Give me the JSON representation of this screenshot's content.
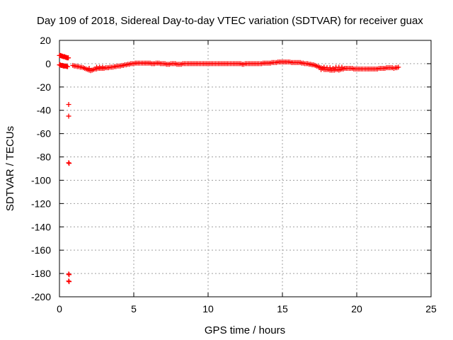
{
  "chart_data": {
    "type": "scatter",
    "title": "Day 109 of 2018, Sidereal Day-to-day VTEC variation (SDTVAR) for receiver guax",
    "xlabel": "GPS time / hours",
    "ylabel": "SDTVAR / TECUs",
    "xlim": [
      0,
      25
    ],
    "ylim": [
      -200,
      20
    ],
    "xticks": [
      0,
      5,
      10,
      15,
      20,
      25
    ],
    "yticks": [
      20,
      0,
      -20,
      -40,
      -60,
      -80,
      -100,
      -120,
      -140,
      -160,
      -180,
      -200
    ],
    "grid": true,
    "legend": "none",
    "marker": "plus",
    "series_color": "#ff0000",
    "series": [
      {
        "points": [
          [
            0.0,
            7
          ],
          [
            0.05,
            7
          ],
          [
            0.1,
            7
          ],
          [
            0.15,
            6.5
          ],
          [
            0.2,
            6.5
          ],
          [
            0.25,
            6
          ],
          [
            0.3,
            6
          ],
          [
            0.35,
            6
          ],
          [
            0.4,
            5.5
          ],
          [
            0.45,
            5.5
          ],
          [
            0.5,
            5
          ],
          [
            0.55,
            5
          ],
          [
            0.6,
            5
          ],
          [
            0.0,
            -1
          ],
          [
            0.05,
            -1
          ],
          [
            0.1,
            -1.5
          ],
          [
            0.15,
            -1.5
          ],
          [
            0.2,
            -1.5
          ],
          [
            0.25,
            -2
          ],
          [
            0.3,
            -2
          ],
          [
            0.35,
            -2
          ],
          [
            0.4,
            -2
          ],
          [
            0.45,
            -2
          ],
          [
            0.5,
            -2.5
          ],
          [
            0.55,
            -2.5
          ],
          [
            0.62,
            -35
          ],
          [
            0.62,
            -45
          ],
          [
            0.62,
            -85
          ],
          [
            0.65,
            -85.5
          ],
          [
            0.62,
            -180.5
          ],
          [
            0.65,
            -181
          ],
          [
            0.62,
            -186.5
          ],
          [
            0.65,
            -187
          ],
          [
            0.9,
            -1.5
          ],
          [
            1.0,
            -2
          ],
          [
            1.1,
            -2
          ],
          [
            1.2,
            -2.5
          ],
          [
            1.3,
            -2.5
          ],
          [
            1.4,
            -3
          ],
          [
            1.5,
            -3
          ],
          [
            1.6,
            -3.5
          ],
          [
            1.7,
            -4
          ],
          [
            1.8,
            -4.5
          ],
          [
            1.9,
            -5
          ],
          [
            2.0,
            -5.5
          ],
          [
            2.0,
            -4
          ],
          [
            2.1,
            -6
          ],
          [
            2.2,
            -5.5
          ],
          [
            2.3,
            -5
          ],
          [
            2.4,
            -4.5
          ],
          [
            2.5,
            -4.5
          ],
          [
            2.6,
            -4
          ],
          [
            2.7,
            -4
          ],
          [
            2.8,
            -4
          ],
          [
            2.9,
            -4
          ],
          [
            3.0,
            -4
          ],
          [
            2.5,
            -3
          ],
          [
            2.7,
            -3
          ],
          [
            2.9,
            -3
          ],
          [
            3.1,
            -3.5
          ],
          [
            3.2,
            -3.5
          ],
          [
            3.3,
            -3.5
          ],
          [
            3.4,
            -3
          ],
          [
            3.5,
            -3
          ],
          [
            3.6,
            -3
          ],
          [
            3.7,
            -2.5
          ],
          [
            3.8,
            -2.5
          ],
          [
            3.9,
            -2
          ],
          [
            4.0,
            -2
          ],
          [
            4.1,
            -2
          ],
          [
            4.2,
            -1.5
          ],
          [
            4.3,
            -1.5
          ],
          [
            4.4,
            -1
          ],
          [
            4.5,
            -1
          ],
          [
            4.6,
            -0.5
          ],
          [
            4.7,
            -0.5
          ],
          [
            4.8,
            0
          ],
          [
            4.9,
            0
          ],
          [
            5.0,
            0
          ],
          [
            5.1,
            0.5
          ],
          [
            5.2,
            0.5
          ],
          [
            5.3,
            0.5
          ],
          [
            5.4,
            0.5
          ],
          [
            5.5,
            0.5
          ],
          [
            5.6,
            0.5
          ],
          [
            5.7,
            0.5
          ],
          [
            5.8,
            0.5
          ],
          [
            5.9,
            0.5
          ],
          [
            6.0,
            0.5
          ],
          [
            6.1,
            0.5
          ],
          [
            6.2,
            0
          ],
          [
            6.3,
            0
          ],
          [
            6.4,
            0
          ],
          [
            6.5,
            0.5
          ],
          [
            6.6,
            0.5
          ],
          [
            6.7,
            0.5
          ],
          [
            6.8,
            0
          ],
          [
            6.9,
            0
          ],
          [
            7.0,
            0
          ],
          [
            7.1,
            0
          ],
          [
            7.2,
            -0.5
          ],
          [
            7.3,
            -0.5
          ],
          [
            7.4,
            -0.5
          ],
          [
            7.5,
            0
          ],
          [
            7.6,
            0
          ],
          [
            7.7,
            0
          ],
          [
            7.8,
            0
          ],
          [
            7.9,
            -0.5
          ],
          [
            8.0,
            -0.5
          ],
          [
            8.1,
            -0.5
          ],
          [
            8.2,
            -0.5
          ],
          [
            8.3,
            0
          ],
          [
            8.4,
            0
          ],
          [
            8.5,
            0
          ],
          [
            8.6,
            0
          ],
          [
            8.7,
            0
          ],
          [
            8.8,
            0
          ],
          [
            8.9,
            0
          ],
          [
            9.0,
            0
          ],
          [
            9.1,
            0
          ],
          [
            9.2,
            0
          ],
          [
            9.3,
            0
          ],
          [
            9.4,
            0
          ],
          [
            9.5,
            0
          ],
          [
            9.6,
            0
          ],
          [
            9.7,
            0
          ],
          [
            9.8,
            0
          ],
          [
            9.9,
            0
          ],
          [
            10.0,
            0
          ],
          [
            10.1,
            0
          ],
          [
            10.2,
            0
          ],
          [
            10.3,
            0
          ],
          [
            10.4,
            0
          ],
          [
            10.5,
            0
          ],
          [
            10.6,
            0
          ],
          [
            10.7,
            0
          ],
          [
            10.8,
            0
          ],
          [
            10.9,
            0
          ],
          [
            11.0,
            0
          ],
          [
            11.1,
            0
          ],
          [
            11.2,
            0
          ],
          [
            11.3,
            0
          ],
          [
            11.4,
            0
          ],
          [
            11.5,
            0
          ],
          [
            11.6,
            0
          ],
          [
            11.7,
            0
          ],
          [
            11.8,
            0
          ],
          [
            11.9,
            0
          ],
          [
            12.0,
            0
          ],
          [
            12.1,
            0
          ],
          [
            12.2,
            0
          ],
          [
            12.3,
            -0.5
          ],
          [
            12.4,
            -0.5
          ],
          [
            12.5,
            0
          ],
          [
            12.6,
            0
          ],
          [
            12.7,
            0
          ],
          [
            12.8,
            0
          ],
          [
            12.9,
            0
          ],
          [
            13.0,
            0
          ],
          [
            13.1,
            0
          ],
          [
            13.2,
            0
          ],
          [
            13.3,
            0
          ],
          [
            13.4,
            0
          ],
          [
            13.5,
            0
          ],
          [
            13.6,
            0
          ],
          [
            13.7,
            0.5
          ],
          [
            13.8,
            0.5
          ],
          [
            13.9,
            0.5
          ],
          [
            14.0,
            0.5
          ],
          [
            14.1,
            0.5
          ],
          [
            14.2,
            0.5
          ],
          [
            14.3,
            1
          ],
          [
            14.4,
            1
          ],
          [
            14.5,
            1
          ],
          [
            14.6,
            1
          ],
          [
            14.7,
            1.5
          ],
          [
            14.8,
            1.5
          ],
          [
            14.9,
            1.5
          ],
          [
            15.0,
            1.5
          ],
          [
            15.1,
            1.5
          ],
          [
            15.2,
            1.5
          ],
          [
            15.3,
            1.5
          ],
          [
            15.4,
            1.5
          ],
          [
            15.5,
            1.5
          ],
          [
            15.6,
            1
          ],
          [
            15.7,
            1
          ],
          [
            15.8,
            1
          ],
          [
            15.9,
            1
          ],
          [
            16.0,
            1
          ],
          [
            16.1,
            1
          ],
          [
            16.2,
            1
          ],
          [
            16.3,
            0.5
          ],
          [
            16.4,
            0.5
          ],
          [
            16.5,
            0
          ],
          [
            16.6,
            0
          ],
          [
            16.7,
            0
          ],
          [
            16.8,
            -0.5
          ],
          [
            16.9,
            -0.5
          ],
          [
            17.0,
            -1
          ],
          [
            17.1,
            -1
          ],
          [
            17.2,
            -1.5
          ],
          [
            17.3,
            -2
          ],
          [
            17.4,
            -2.5
          ],
          [
            17.5,
            -3
          ],
          [
            17.6,
            -3.5
          ],
          [
            17.7,
            -4
          ],
          [
            17.8,
            -5
          ],
          [
            17.9,
            -5
          ],
          [
            18.0,
            -5
          ],
          [
            18.1,
            -5
          ],
          [
            18.2,
            -5.5
          ],
          [
            18.3,
            -5.5
          ],
          [
            18.4,
            -5.5
          ],
          [
            17.6,
            -5
          ],
          [
            17.8,
            -3
          ],
          [
            18.0,
            -3.5
          ],
          [
            18.2,
            -3.5
          ],
          [
            18.4,
            -4
          ],
          [
            18.5,
            -5.5
          ],
          [
            18.6,
            -5
          ],
          [
            18.7,
            -5
          ],
          [
            18.8,
            -5.5
          ],
          [
            18.9,
            -5
          ],
          [
            19.0,
            -4.5
          ],
          [
            19.1,
            -4.5
          ],
          [
            18.6,
            -3
          ],
          [
            18.8,
            -3
          ],
          [
            19.0,
            -3
          ],
          [
            19.2,
            -4
          ],
          [
            19.3,
            -4
          ],
          [
            19.4,
            -4
          ],
          [
            19.5,
            -4
          ],
          [
            19.6,
            -4
          ],
          [
            19.7,
            -4
          ],
          [
            19.8,
            -4.5
          ],
          [
            19.9,
            -4.5
          ],
          [
            20.0,
            -4.5
          ],
          [
            20.1,
            -4.5
          ],
          [
            20.2,
            -4.5
          ],
          [
            20.3,
            -4.5
          ],
          [
            20.4,
            -4.5
          ],
          [
            20.5,
            -4.5
          ],
          [
            20.6,
            -4.5
          ],
          [
            20.7,
            -4.5
          ],
          [
            20.8,
            -4.5
          ],
          [
            20.9,
            -4.5
          ],
          [
            21.0,
            -4.5
          ],
          [
            21.1,
            -4.5
          ],
          [
            21.2,
            -4.5
          ],
          [
            21.3,
            -4.5
          ],
          [
            21.4,
            -4.5
          ],
          [
            21.5,
            -4
          ],
          [
            21.6,
            -4
          ],
          [
            21.7,
            -4
          ],
          [
            21.8,
            -4
          ],
          [
            21.9,
            -4
          ],
          [
            22.0,
            -3.5
          ],
          [
            22.1,
            -3.5
          ],
          [
            22.2,
            -3.5
          ],
          [
            22.3,
            -3.5
          ],
          [
            22.4,
            -3.5
          ],
          [
            22.5,
            -4
          ],
          [
            22.6,
            -3.5
          ],
          [
            22.7,
            -3.5
          ],
          [
            22.8,
            -3
          ]
        ]
      }
    ]
  }
}
